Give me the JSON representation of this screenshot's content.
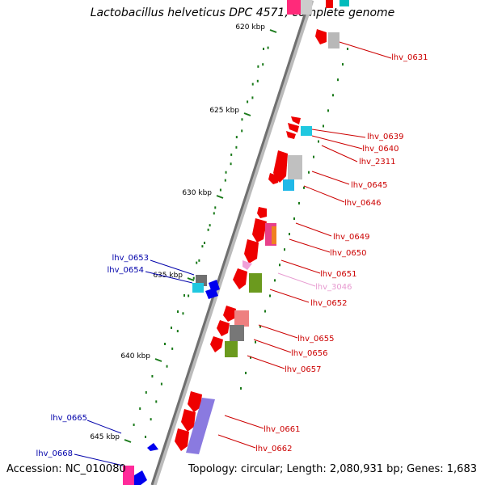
{
  "title": "Lactobacillus helveticus DPC 4571, complete genome",
  "footer": {
    "accession": "Accession: NC_010080",
    "summary": "Topology: circular; Length: 2,080,931 bp; Genes: 1,683"
  },
  "colors": {
    "backbone": "#8a8a8a",
    "tick": "#1a7a1a",
    "forward_label": "#cc0000",
    "reverse_label": "#0000aa",
    "pseudo_label": "#e79ad0"
  },
  "scale_labels": [
    "620 kbp",
    "625 kbp",
    "630 kbp",
    "635 kbp",
    "640 kbp",
    "645 kbp"
  ],
  "gene_labels": {
    "right": [
      "lhv_0631",
      "lhv_0639",
      "lhv_0640",
      "lhv_2311",
      "lhv_0645",
      "lhv_0646",
      "lhv_0649",
      "lhv_0650",
      "lhv_0651",
      "lhv_3046",
      "lhv_0652",
      "lhv_0655",
      "lhv_0656",
      "lhv_0657",
      "lhv_0661",
      "lhv_0662"
    ],
    "left": [
      "lhv_0653",
      "lhv_0654",
      "lhv_0665",
      "lhv_0668"
    ]
  }
}
